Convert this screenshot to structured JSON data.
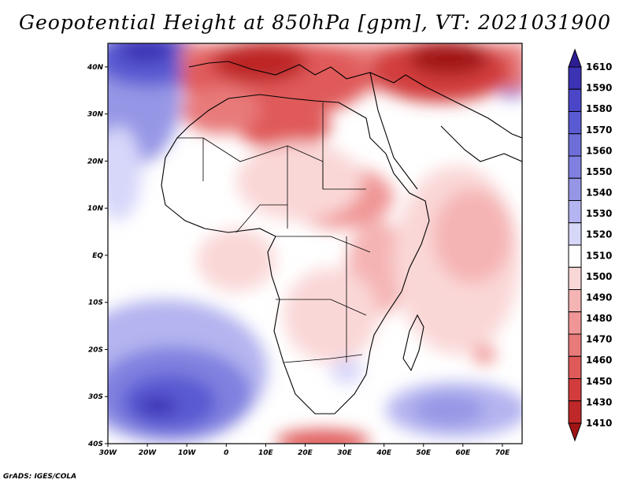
{
  "title": "Geopotential Height at 850hPa [gpm], VT: 2021031900",
  "credit": "GrADS: IGES/COLA",
  "axes": {
    "lon_labels": [
      "30W",
      "20W",
      "10W",
      "0",
      "10E",
      "20E",
      "30E",
      "40E",
      "50E",
      "60E",
      "70E"
    ],
    "lat_labels": [
      "40N",
      "30N",
      "20N",
      "10N",
      "EQ",
      "10S",
      "20S",
      "30S",
      "40S"
    ]
  },
  "colorbar": {
    "levels": [
      "1610",
      "1590",
      "1580",
      "1570",
      "1560",
      "1550",
      "1540",
      "1530",
      "1520",
      "1510",
      "1500",
      "1490",
      "1480",
      "1470",
      "1460",
      "1450",
      "1430",
      "1410"
    ],
    "colors": [
      "#2d1e96",
      "#3c32b4",
      "#4b46c8",
      "#5a5ad2",
      "#6e6ed9",
      "#8080e0",
      "#9696e6",
      "#b4b4f0",
      "#d7d7fa",
      "#ffffff",
      "#fad7d7",
      "#f5b4b4",
      "#f09696",
      "#e87a7a",
      "#e05a5a",
      "#d23c3c",
      "#be2828",
      "#a01414"
    ]
  }
}
